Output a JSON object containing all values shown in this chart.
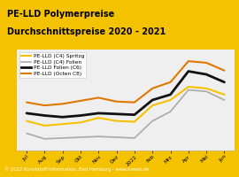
{
  "title_line1": "PE-LLD Polymerpreise",
  "title_line2": "Durchschnittspreise 2020 - 2021",
  "title_bg": "#f5c200",
  "footer": "© 2022 Kunststoff Information, Bad Homburg - www.kiweb.de",
  "footer_bg": "#7a7a7a",
  "x_labels": [
    "Jul",
    "Aug",
    "Sep",
    "Okt",
    "Nov",
    "Dez",
    "2022",
    "Feb",
    "Mrz",
    "Apr",
    "Mai",
    "Jun"
  ],
  "series": [
    {
      "label": "PE-LLD (C4) Spritzg",
      "color": "#f5c200",
      "lw": 1.5,
      "values": [
        128,
        122,
        124,
        126,
        132,
        128,
        127,
        148,
        155,
        172,
        170,
        162
      ]
    },
    {
      "label": "PE-LLD (C4) Folien",
      "color": "#aaaaaa",
      "lw": 1.2,
      "values": [
        112,
        105,
        106,
        107,
        108,
        107,
        106,
        128,
        140,
        168,
        166,
        155
      ]
    },
    {
      "label": "PE-LLD Folien (C6)",
      "color": "#111111",
      "lw": 2.0,
      "values": [
        138,
        135,
        133,
        135,
        138,
        137,
        136,
        155,
        162,
        192,
        188,
        178
      ]
    },
    {
      "label": "PE-LLD (Octen C8)",
      "color": "#e07800",
      "lw": 1.5,
      "values": [
        152,
        148,
        150,
        154,
        158,
        153,
        152,
        170,
        178,
        205,
        203,
        193
      ]
    }
  ],
  "plot_bg": "#efefef",
  "ylim": [
    90,
    220
  ],
  "title_fontsize": 7.0,
  "legend_fontsize": 4.2,
  "tick_fontsize": 4.2
}
